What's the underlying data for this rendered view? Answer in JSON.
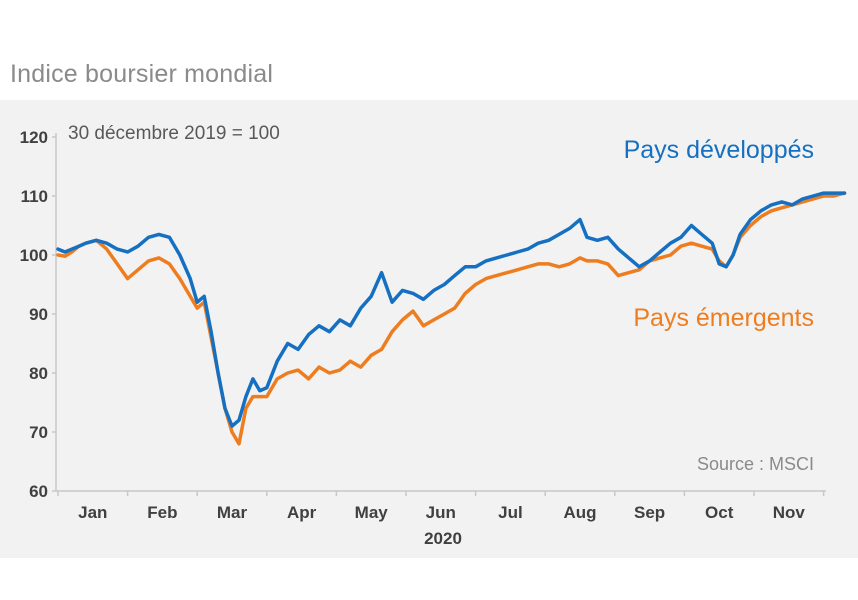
{
  "title": "Indice boursier mondial",
  "colors": {
    "developed": "#1570c2",
    "emerging": "#ee7d1f",
    "axis": "#c8c8c8",
    "panel": "#f2f2f2"
  },
  "chart_data": {
    "type": "line",
    "title": "Indice boursier mondial",
    "subtitle": "30 décembre 2019 = 100",
    "source": "Source : MSCI",
    "ylim": [
      60,
      120
    ],
    "yticks": [
      60,
      70,
      80,
      90,
      100,
      110,
      120
    ],
    "xlabel": "2020",
    "x_ticks": [
      "Jan",
      "Feb",
      "Mar",
      "Apr",
      "May",
      "Jun",
      "Jul",
      "Aug",
      "Sep",
      "Oct",
      "Nov"
    ],
    "x_domain": [
      0,
      11.35
    ],
    "grid": false,
    "series": [
      {
        "name": "Pays développés",
        "color": "#1570c2",
        "x": [
          0,
          0.1,
          0.2,
          0.3,
          0.4,
          0.55,
          0.7,
          0.85,
          1.0,
          1.15,
          1.3,
          1.45,
          1.6,
          1.75,
          1.9,
          2.0,
          2.1,
          2.2,
          2.3,
          2.4,
          2.5,
          2.6,
          2.7,
          2.8,
          2.9,
          3.0,
          3.15,
          3.3,
          3.45,
          3.6,
          3.75,
          3.9,
          4.05,
          4.2,
          4.35,
          4.5,
          4.65,
          4.8,
          4.95,
          5.1,
          5.25,
          5.4,
          5.55,
          5.7,
          5.85,
          6.0,
          6.15,
          6.3,
          6.45,
          6.6,
          6.75,
          6.9,
          7.05,
          7.2,
          7.35,
          7.5,
          7.6,
          7.75,
          7.9,
          8.05,
          8.2,
          8.35,
          8.5,
          8.65,
          8.8,
          8.95,
          9.1,
          9.25,
          9.4,
          9.5,
          9.6,
          9.7,
          9.8,
          9.95,
          10.1,
          10.25,
          10.4,
          10.55,
          10.7,
          10.85,
          11.0,
          11.15,
          11.3
        ],
        "values": [
          101,
          100.5,
          101,
          101.5,
          102,
          102.5,
          102,
          101,
          100.5,
          101.5,
          103,
          103.5,
          103,
          100,
          96,
          92,
          93,
          87,
          80,
          74,
          71,
          72,
          76,
          79,
          77,
          77.5,
          82,
          85,
          84,
          86.5,
          88,
          87,
          89,
          88,
          91,
          93,
          97,
          92,
          94,
          93.5,
          92.5,
          94,
          95,
          96.5,
          98,
          98,
          99,
          99.5,
          100,
          100.5,
          101,
          102,
          102.5,
          103.5,
          104.5,
          106,
          103,
          102.5,
          103,
          101,
          99.5,
          98,
          99,
          100.5,
          102,
          103,
          105,
          103.5,
          102,
          98.5,
          98,
          100,
          103.5,
          106,
          107.5,
          108.5,
          109,
          108.5,
          109.5,
          110,
          110.5,
          110.5,
          110.5
        ]
      },
      {
        "name": "Pays émergents",
        "color": "#ee7d1f",
        "x": [
          0,
          0.1,
          0.2,
          0.3,
          0.4,
          0.55,
          0.7,
          0.85,
          1.0,
          1.15,
          1.3,
          1.45,
          1.6,
          1.75,
          1.9,
          2.0,
          2.1,
          2.2,
          2.3,
          2.4,
          2.5,
          2.6,
          2.7,
          2.8,
          2.9,
          3.0,
          3.15,
          3.3,
          3.45,
          3.6,
          3.75,
          3.9,
          4.05,
          4.2,
          4.35,
          4.5,
          4.65,
          4.8,
          4.95,
          5.1,
          5.25,
          5.4,
          5.55,
          5.7,
          5.85,
          6.0,
          6.15,
          6.3,
          6.45,
          6.6,
          6.75,
          6.9,
          7.05,
          7.2,
          7.35,
          7.5,
          7.6,
          7.75,
          7.9,
          8.05,
          8.2,
          8.35,
          8.5,
          8.65,
          8.8,
          8.95,
          9.1,
          9.25,
          9.4,
          9.5,
          9.6,
          9.7,
          9.8,
          9.95,
          10.1,
          10.25,
          10.4,
          10.55,
          10.7,
          10.85,
          11.0,
          11.15,
          11.3
        ],
        "values": [
          100,
          99.8,
          100.5,
          101.5,
          102,
          102.5,
          101,
          98.5,
          96,
          97.5,
          99,
          99.5,
          98.5,
          96,
          93,
          91,
          92,
          86,
          80,
          74,
          70,
          68,
          74,
          76,
          76,
          76,
          79,
          80,
          80.5,
          79,
          81,
          80,
          80.5,
          82,
          81,
          83,
          84,
          87,
          89,
          90.5,
          88,
          89,
          90,
          91,
          93.5,
          95,
          96,
          96.5,
          97,
          97.5,
          98,
          98.5,
          98.5,
          98,
          98.5,
          99.5,
          99,
          99,
          98.5,
          96.5,
          97,
          97.5,
          99,
          99.5,
          100,
          101.5,
          102,
          101.5,
          101,
          99,
          98,
          100,
          103,
          105,
          106.5,
          107.5,
          108,
          108.5,
          109,
          109.5,
          110,
          110,
          110.5
        ]
      }
    ]
  }
}
